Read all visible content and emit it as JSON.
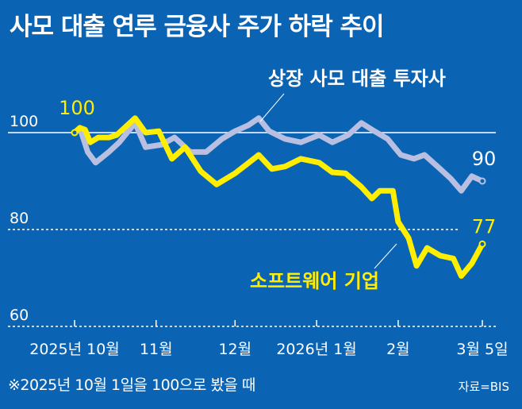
{
  "chart_data": {
    "type": "line",
    "title": "사모 대출 연루 금융사 주가 하락 추이",
    "ylim": [
      60,
      100
    ],
    "yticks": [
      "100",
      "80",
      "60"
    ],
    "xticks": [
      {
        "date": "2025-10-01",
        "label": "2025년 10월"
      },
      {
        "date": "2025-11-01",
        "label": "11월"
      },
      {
        "date": "2025-12-01",
        "label": "12월"
      },
      {
        "date": "2026-01-01",
        "label": "2026년 1월"
      },
      {
        "date": "2026-02-01",
        "label": "2월"
      },
      {
        "date": "2026-03-05",
        "label": "3월 5일"
      }
    ],
    "series": [
      {
        "name": "상장 사모 대출 투자사",
        "color": "#b9bfe0",
        "end_label": "90",
        "points": [
          [
            "2025-10-01",
            100
          ],
          [
            "2025-10-03",
            101
          ],
          [
            "2025-10-06",
            96
          ],
          [
            "2025-10-09",
            93.8
          ],
          [
            "2025-10-14",
            96
          ],
          [
            "2025-10-18",
            98
          ],
          [
            "2025-10-24",
            102
          ],
          [
            "2025-10-28",
            97
          ],
          [
            "2025-11-03",
            97.5
          ],
          [
            "2025-11-08",
            99
          ],
          [
            "2025-11-14",
            96
          ],
          [
            "2025-11-20",
            96
          ],
          [
            "2025-11-26",
            98.7
          ],
          [
            "2025-12-01",
            100.3
          ],
          [
            "2025-12-06",
            101.5
          ],
          [
            "2025-12-10",
            103
          ],
          [
            "2025-12-14",
            100.3
          ],
          [
            "2025-12-20",
            98.7
          ],
          [
            "2025-12-26",
            98
          ],
          [
            "2026-01-02",
            99.5
          ],
          [
            "2026-01-07",
            98
          ],
          [
            "2026-01-13",
            99.5
          ],
          [
            "2026-01-18",
            102
          ],
          [
            "2026-01-23",
            100.3
          ],
          [
            "2026-01-28",
            98.7
          ],
          [
            "2026-02-02",
            95.4
          ],
          [
            "2026-02-07",
            94.6
          ],
          [
            "2026-02-11",
            95.4
          ],
          [
            "2026-02-16",
            93
          ],
          [
            "2026-02-21",
            90.5
          ],
          [
            "2026-02-25",
            88
          ],
          [
            "2026-03-01",
            91
          ],
          [
            "2026-03-05",
            90
          ]
        ]
      },
      {
        "name": "소프트웨어 기업",
        "color": "#ffee00",
        "start_label": "100",
        "end_label": "77",
        "points": [
          [
            "2025-10-01",
            100
          ],
          [
            "2025-10-03",
            101
          ],
          [
            "2025-10-05",
            100.6
          ],
          [
            "2025-10-07",
            98
          ],
          [
            "2025-10-10",
            99
          ],
          [
            "2025-10-14",
            99
          ],
          [
            "2025-10-17",
            99.5
          ],
          [
            "2025-10-24",
            103
          ],
          [
            "2025-10-28",
            100
          ],
          [
            "2025-11-02",
            100.3
          ],
          [
            "2025-11-07",
            94.6
          ],
          [
            "2025-11-12",
            97
          ],
          [
            "2025-11-18",
            92
          ],
          [
            "2025-11-24",
            89.3
          ],
          [
            "2025-12-01",
            91.6
          ],
          [
            "2025-12-06",
            93.7
          ],
          [
            "2025-12-10",
            95.4
          ],
          [
            "2025-12-15",
            92.5
          ],
          [
            "2025-12-20",
            93
          ],
          [
            "2025-12-26",
            94.6
          ],
          [
            "2026-01-02",
            93.8
          ],
          [
            "2026-01-07",
            91.8
          ],
          [
            "2026-01-12",
            91.6
          ],
          [
            "2026-01-18",
            88.8
          ],
          [
            "2026-01-22",
            86.4
          ],
          [
            "2026-01-25",
            88
          ],
          [
            "2026-01-30",
            88
          ],
          [
            "2026-02-01",
            81.6
          ],
          [
            "2026-02-05",
            78.2
          ],
          [
            "2026-02-08",
            72.5
          ],
          [
            "2026-02-12",
            76.2
          ],
          [
            "2026-02-17",
            74.6
          ],
          [
            "2026-02-22",
            74
          ],
          [
            "2026-02-25",
            70.4
          ],
          [
            "2026-03-01",
            73
          ],
          [
            "2026-03-05",
            77
          ]
        ]
      }
    ],
    "baseline": 100,
    "footnote": "※2025년 10월 1일을 100으로 봤을 때",
    "source": "자료=BIS"
  }
}
